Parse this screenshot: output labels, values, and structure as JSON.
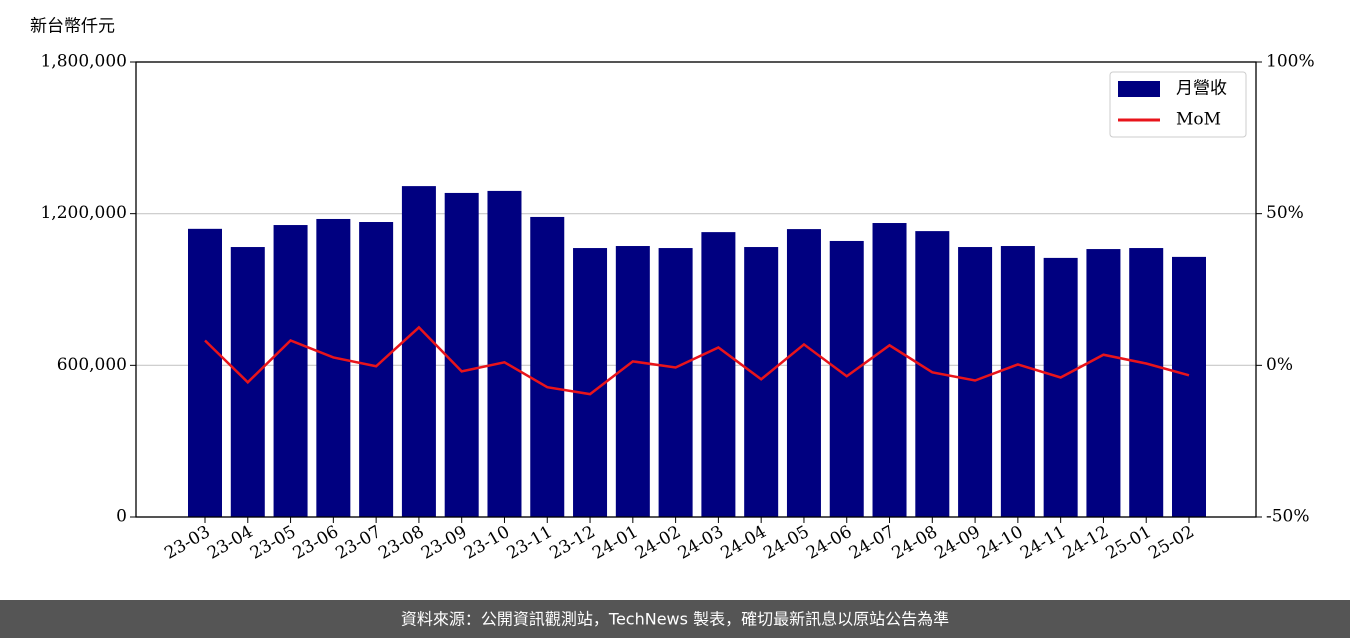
{
  "chart_data": {
    "type": "bar",
    "y_label": "新台幣仟元",
    "categories": [
      "23-03",
      "23-04",
      "23-05",
      "23-06",
      "23-07",
      "23-08",
      "23-09",
      "23-10",
      "23-11",
      "23-12",
      "24-01",
      "24-02",
      "24-03",
      "24-04",
      "24-05",
      "24-06",
      "24-07",
      "24-08",
      "24-09",
      "24-10",
      "24-11",
      "24-12",
      "25-01",
      "25-02"
    ],
    "series": [
      {
        "name": "月營收",
        "type": "bar",
        "color": "#000080",
        "values": [
          1140000,
          1068000,
          1155000,
          1179000,
          1167000,
          1309000,
          1282000,
          1290000,
          1187000,
          1064000,
          1072000,
          1064000,
          1127000,
          1068000,
          1139000,
          1092000,
          1163000,
          1131000,
          1068000,
          1072000,
          1025000,
          1060000,
          1064000,
          1029000
        ]
      },
      {
        "name": "MoM",
        "type": "line",
        "axis": "y2",
        "color": "#e8141b",
        "values": [
          8.2,
          -5.6,
          8.2,
          2.6,
          -0.3,
          12.5,
          -2.0,
          1.0,
          -7.2,
          -9.5,
          1.3,
          -0.7,
          5.9,
          -4.6,
          6.9,
          -3.6,
          6.6,
          -2.3,
          -5.0,
          0.3,
          -4.0,
          3.5,
          0.6,
          -3.3
        ]
      }
    ],
    "ylim": [
      0,
      1800000
    ],
    "yticks": [
      0,
      {
        "value": 600000,
        "label": "600,000"
      },
      {
        "value": 1200000,
        "label": "1,200,000"
      },
      {
        "value": 1800000,
        "label": "1,800,000"
      }
    ],
    "y2lim": [
      -50,
      100
    ],
    "y2ticks": [
      {
        "value": -50,
        "label": "-50%"
      },
      {
        "value": 0,
        "label": "0%"
      },
      {
        "value": 50,
        "label": "50%"
      },
      {
        "value": 100,
        "label": "100%"
      }
    ],
    "grid": true,
    "legend": "upper right"
  },
  "footer": "資料來源：公開資訊觀測站，TechNews 製表，確切最新訊息以原站公告為準"
}
